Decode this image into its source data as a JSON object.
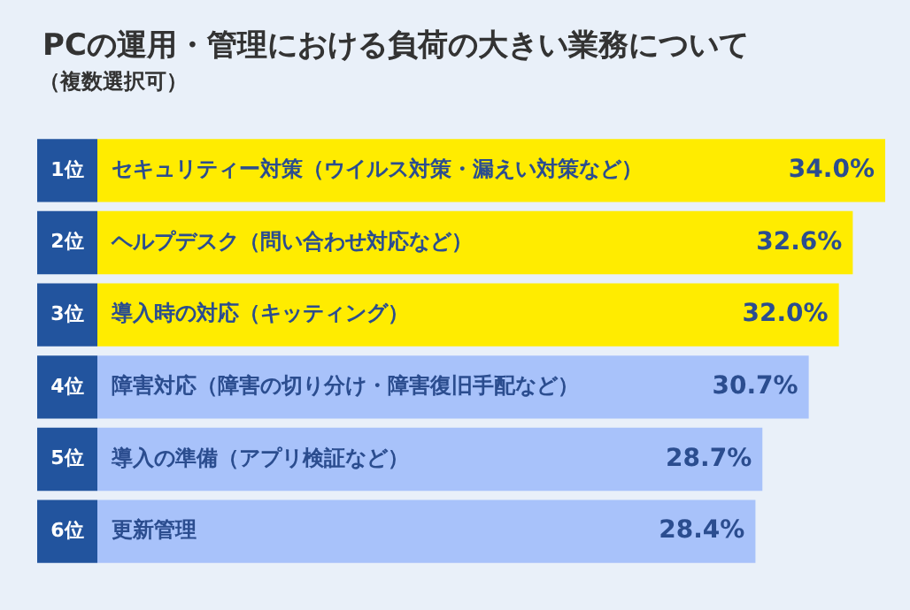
{
  "chart_data": {
    "type": "bar",
    "orientation": "horizontal",
    "title": "PCの運用・管理における負荷の大きい業務について",
    "subtitle": "（複数選択可）",
    "categories": [
      "セキュリティー対策（ウイルス対策・漏えい対策など）",
      "ヘルプデスク（問い合わせ対応など）",
      "導入時の対応（キッティング）",
      "障害対応（障害の切り分け・障害復旧手配など）",
      "導入の準備（アプリ検証など）",
      "更新管理"
    ],
    "values": [
      34.0,
      32.6,
      32.0,
      30.7,
      28.7,
      28.4
    ],
    "colors": [
      "#ffec00",
      "#ffec00",
      "#ffec00",
      "#a8c2fa",
      "#a8c2fa",
      "#a8c2fa"
    ],
    "value_labels": [
      "34.0%",
      "32.6%",
      "32.0%",
      "30.7%",
      "28.7%",
      "28.4%"
    ],
    "annotations": [
      "1位",
      "2位",
      "3位",
      "4位",
      "5位",
      "6位"
    ]
  }
}
